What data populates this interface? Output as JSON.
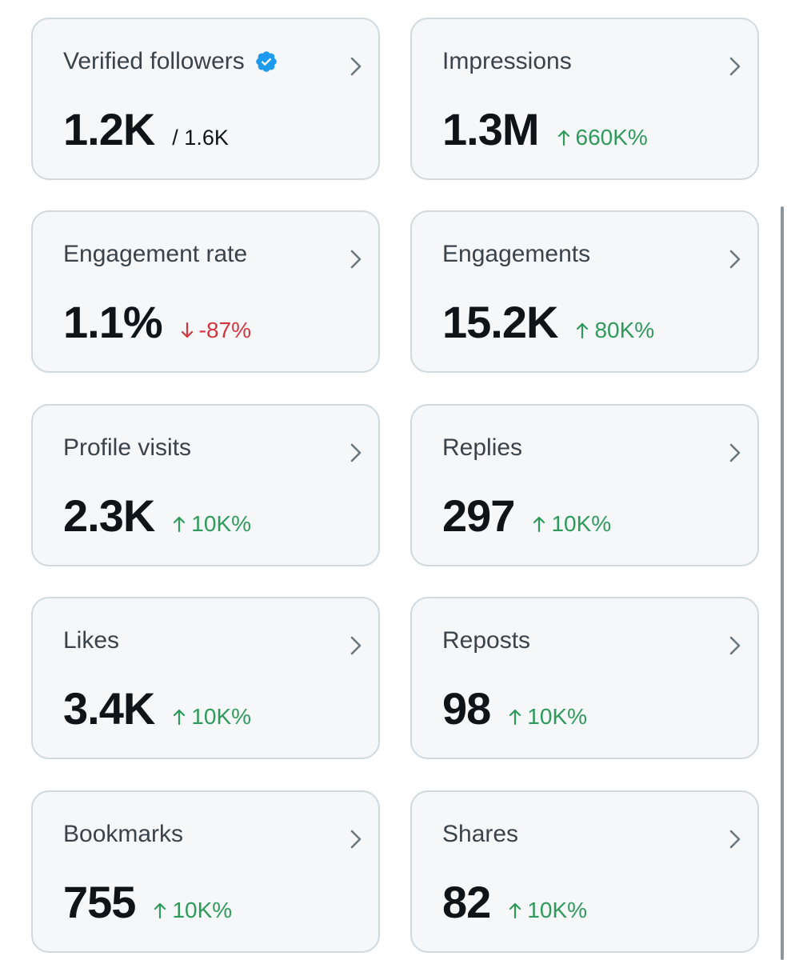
{
  "colors": {
    "card_bg": "#f6f7f8",
    "card_border": "#cfd9de",
    "positive": "#2e9a5b",
    "negative": "#d2363d",
    "verified_badge": "#1d9bf0"
  },
  "cards": [
    {
      "title": "Verified followers",
      "value": "1.2K",
      "sub": "/ 1.6K",
      "icon": "verified-badge-icon"
    },
    {
      "title": "Impressions",
      "value": "1.3M",
      "delta": "660K%",
      "direction": "up"
    },
    {
      "title": "Engagement rate",
      "value": "1.1%",
      "delta": "-87%",
      "direction": "down"
    },
    {
      "title": "Engagements",
      "value": "15.2K",
      "delta": "80K%",
      "direction": "up"
    },
    {
      "title": "Profile visits",
      "value": "2.3K",
      "delta": "10K%",
      "direction": "up"
    },
    {
      "title": "Replies",
      "value": "297",
      "delta": "10K%",
      "direction": "up"
    },
    {
      "title": "Likes",
      "value": "3.4K",
      "delta": "10K%",
      "direction": "up"
    },
    {
      "title": "Reposts",
      "value": "98",
      "delta": "10K%",
      "direction": "up"
    },
    {
      "title": "Bookmarks",
      "value": "755",
      "delta": "10K%",
      "direction": "up"
    },
    {
      "title": "Shares",
      "value": "82",
      "delta": "10K%",
      "direction": "up"
    }
  ]
}
